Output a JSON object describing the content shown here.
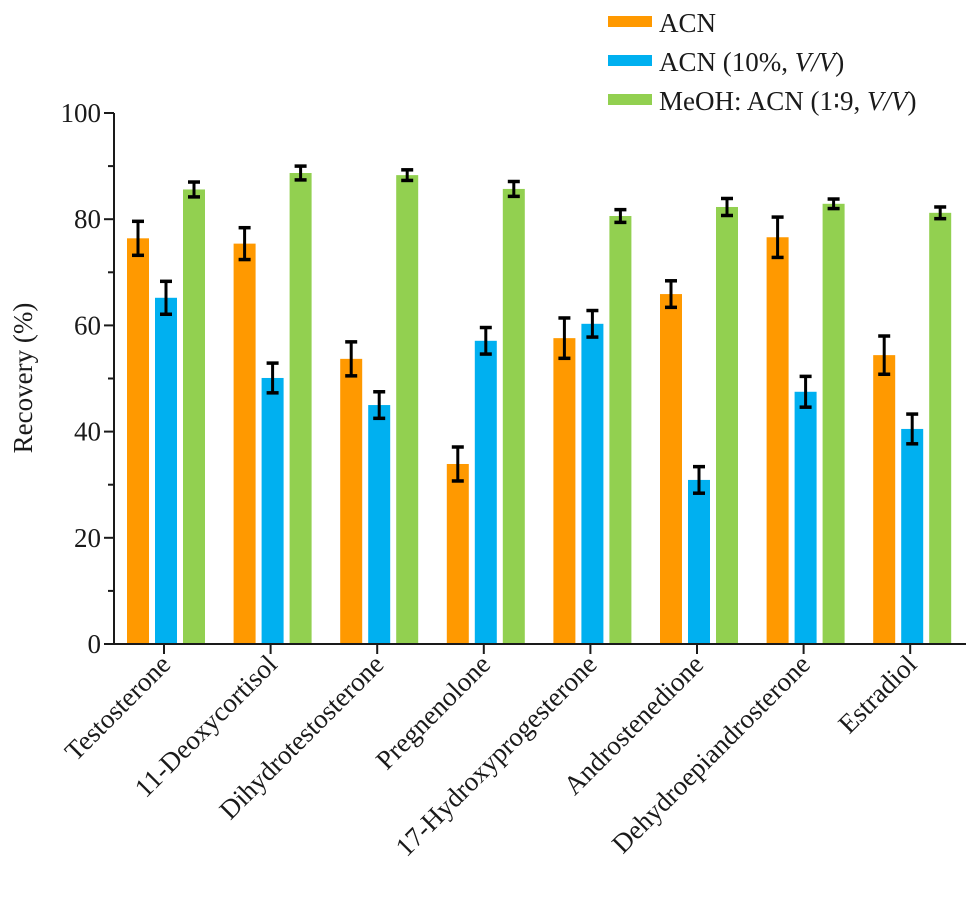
{
  "chart_data": {
    "type": "bar",
    "title": "",
    "xlabel": "",
    "ylabel": "Recovery (%)",
    "ylim": [
      0,
      100
    ],
    "yticks": [
      0,
      20,
      40,
      60,
      80,
      100
    ],
    "yminor_step": 10,
    "grid": false,
    "legend_position": "top-right",
    "categories": [
      "Testosterone",
      "11-Deoxycortisol",
      "Dihydrotestosterone",
      "Pregnenolone",
      "17-Hydroxyprogesterone",
      "Androstenedione",
      "Dehydroepiandrosterone",
      "Estradiol"
    ],
    "series": [
      {
        "name": "ACN",
        "legend_parts": [
          {
            "text": "ACN",
            "italic": false
          }
        ],
        "color": "#FF9900",
        "values": [
          76.4,
          75.4,
          53.7,
          33.9,
          57.6,
          65.9,
          76.6,
          54.4
        ],
        "errors": [
          3.2,
          3.0,
          3.2,
          3.2,
          3.8,
          2.5,
          3.8,
          3.6
        ]
      },
      {
        "name": "ACN (10%, V/V)",
        "legend_parts": [
          {
            "text": "ACN (10%, ",
            "italic": false
          },
          {
            "text": "V/V",
            "italic": true
          },
          {
            "text": ")",
            "italic": false
          }
        ],
        "color": "#00B0F0",
        "values": [
          65.2,
          50.1,
          45.0,
          57.1,
          60.3,
          30.9,
          47.5,
          40.5
        ],
        "errors": [
          3.1,
          2.8,
          2.5,
          2.5,
          2.5,
          2.5,
          2.9,
          2.8
        ]
      },
      {
        "name": "MeOH: ACN (1:9, V/V)",
        "legend_parts": [
          {
            "text": "MeOH: ACN (1∶9, ",
            "italic": false
          },
          {
            "text": "V/V",
            "italic": true
          },
          {
            "text": ")",
            "italic": false
          }
        ],
        "color": "#92D050",
        "values": [
          85.6,
          88.7,
          88.3,
          85.7,
          80.6,
          82.3,
          82.9,
          81.2
        ],
        "errors": [
          1.4,
          1.3,
          1.0,
          1.4,
          1.2,
          1.6,
          0.9,
          1.1
        ]
      }
    ]
  }
}
